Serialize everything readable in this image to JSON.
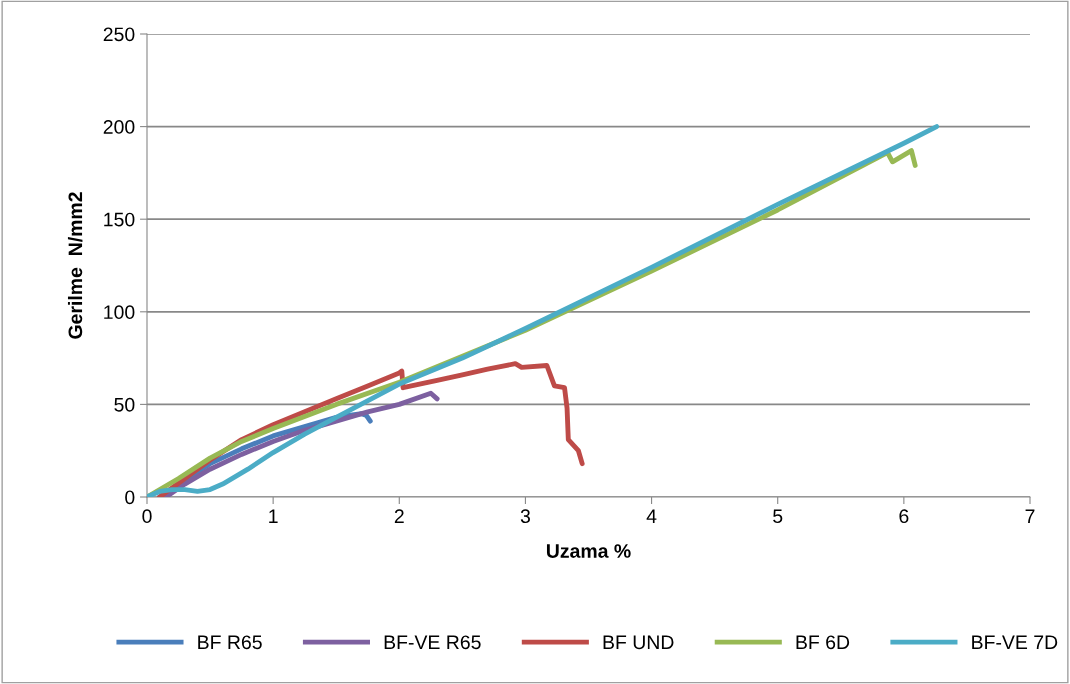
{
  "chart_data": {
    "type": "line",
    "xlabel": "Uzama %",
    "ylabel": "Gerilme  N/mm2",
    "xlim": [
      0,
      7
    ],
    "xticks": [
      0,
      1,
      2,
      3,
      4,
      5,
      6,
      7
    ],
    "ylim": [
      0,
      250
    ],
    "yticks": [
      0,
      50,
      100,
      150,
      200,
      250
    ],
    "grid": "y",
    "legend": "bottom",
    "marker": "none",
    "line_style": "solid",
    "series": [
      {
        "name": "BF R65",
        "color": "#4a7ebb",
        "x": [
          0.1,
          0.3,
          0.5,
          0.75,
          1.0,
          1.25,
          1.5,
          1.6,
          1.7,
          1.74,
          1.77
        ],
        "values": [
          0,
          9,
          18,
          26,
          33,
          38,
          43,
          44,
          45,
          44,
          41
        ]
      },
      {
        "name": "BF-VE R65",
        "color": "#7d60a0",
        "x": [
          0.15,
          0.3,
          0.5,
          0.75,
          1.0,
          1.25,
          1.5,
          1.75,
          2.0,
          2.25,
          2.3
        ],
        "values": [
          0,
          7,
          15,
          23,
          30,
          36,
          41,
          46,
          50,
          56,
          53
        ]
      },
      {
        "name": "BF UND",
        "color": "#be4b48",
        "x": [
          0.1,
          0.3,
          0.5,
          0.75,
          1.0,
          1.25,
          1.5,
          1.75,
          2.0,
          2.02,
          2.03,
          2.3,
          2.5,
          2.7,
          2.92,
          2.97,
          3.17,
          3.23,
          3.31,
          3.33,
          3.34,
          3.42,
          3.45
        ],
        "values": [
          0,
          10,
          20,
          31,
          39,
          46,
          53,
          60,
          67,
          68,
          59,
          63,
          66,
          69,
          72,
          70,
          71,
          60,
          59,
          48,
          31,
          25,
          18
        ]
      },
      {
        "name": "BF 6D",
        "color": "#98b954",
        "x": [
          0.0,
          0.25,
          0.5,
          0.75,
          1.0,
          1.5,
          2.0,
          3.0,
          4.0,
          5.0,
          5.87,
          5.91,
          6.06,
          6.09
        ],
        "values": [
          0,
          10,
          21,
          30,
          37,
          50,
          62,
          90,
          122,
          155,
          186,
          181,
          187,
          179
        ]
      },
      {
        "name": "BF-VE 7D",
        "color": "#4bacc6",
        "x": [
          0.0,
          0.1,
          0.2,
          0.3,
          0.4,
          0.5,
          0.6,
          0.8,
          1.0,
          1.25,
          1.5,
          2.0,
          2.5,
          3.0,
          4.0,
          5.0,
          6.0,
          6.26
        ],
        "values": [
          0,
          3,
          4,
          4,
          3,
          4,
          7,
          15,
          24,
          34,
          43,
          61,
          75,
          91,
          124,
          158,
          191,
          200
        ]
      }
    ]
  }
}
